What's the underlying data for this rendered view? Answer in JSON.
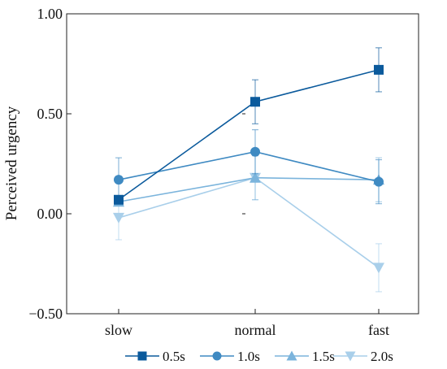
{
  "chart_data": {
    "type": "line",
    "title": "",
    "xlabel": "",
    "ylabel": "Perceived urgency",
    "categories": [
      "slow",
      "normal",
      "fast"
    ],
    "ylim": [
      -0.5,
      1.0
    ],
    "yticks": [
      -0.5,
      0.0,
      0.5,
      1.0
    ],
    "ytick_labels": [
      "−0.50",
      "0.00",
      "0.50",
      "1.00"
    ],
    "grid": false,
    "legend_position": "bottom",
    "series": [
      {
        "name": "0.5s",
        "marker": "square",
        "color": "#0b5a9c",
        "values": [
          0.07,
          0.56,
          0.72
        ],
        "errors": [
          0.0,
          0.11,
          0.11
        ]
      },
      {
        "name": "1.0s",
        "marker": "circle",
        "color": "#3f8ac2",
        "values": [
          0.17,
          0.31,
          0.16
        ],
        "errors": [
          0.11,
          0.11,
          0.11
        ]
      },
      {
        "name": "1.5s",
        "marker": "triangle-up",
        "color": "#7bb4dc",
        "values": [
          0.06,
          0.18,
          0.17
        ],
        "errors": [
          0.0,
          0.11,
          0.11
        ]
      },
      {
        "name": "2.0s",
        "marker": "triangle-down",
        "color": "#a9cfea",
        "values": [
          -0.02,
          0.18,
          -0.27
        ],
        "errors": [
          0.11,
          0.11,
          0.12
        ]
      }
    ]
  }
}
